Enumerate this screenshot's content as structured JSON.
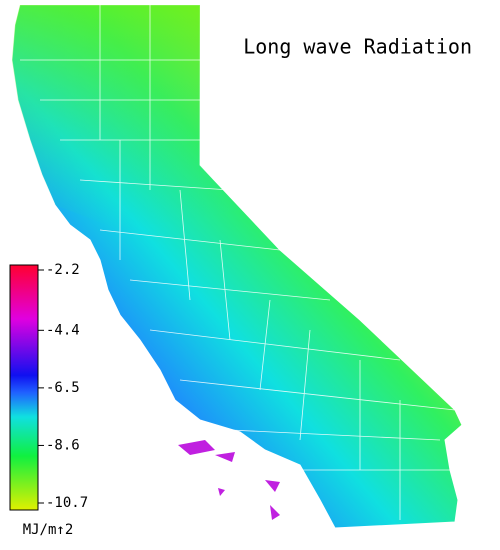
{
  "title": "Long wave Radiation",
  "colorbar": {
    "vlim": [
      -10.7,
      -2.2
    ],
    "ticks": [
      -2.2,
      -4.4,
      -6.5,
      -8.6,
      -10.7
    ],
    "unit": "MJ/m↑2"
  }
}
